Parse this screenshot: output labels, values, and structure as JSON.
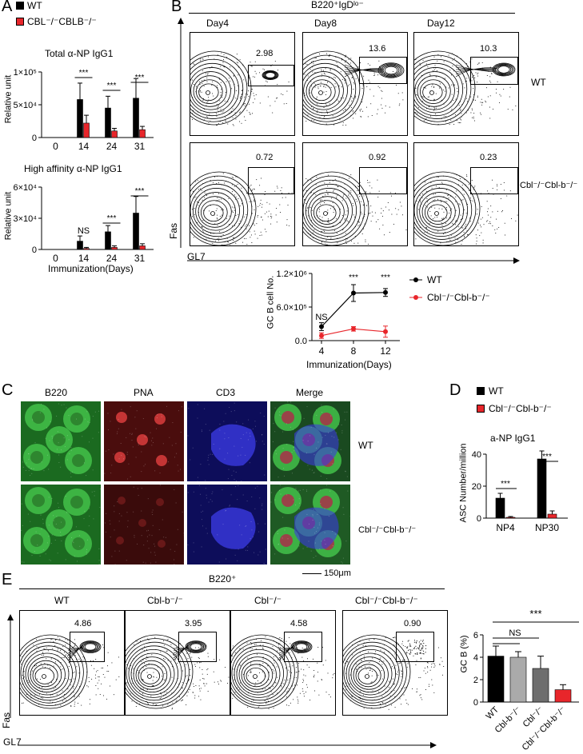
{
  "panels": {
    "A": "A",
    "B": "B",
    "C": "C",
    "D": "D",
    "E": "E"
  },
  "panelA": {
    "legend": [
      {
        "label": "WT",
        "color": "#000000"
      },
      {
        "label": "CBL⁻/⁻CBLB⁻/⁻",
        "color": "#e8262b"
      }
    ],
    "xlabel": "Immunization(Days)"
  },
  "panelB": {
    "header": "B220⁺IgDˡᵒ⁻",
    "days": [
      "Day4",
      "Day8",
      "Day12"
    ],
    "row_labels": [
      "WT",
      "Cbl⁻/⁻Cbl-b⁻/⁻"
    ],
    "yaxis": "Fas",
    "xaxis": "GL7",
    "pcts_wt": [
      "2.98",
      "13.6",
      "10.3"
    ],
    "pcts_ko": [
      "0.72",
      "0.92",
      "0.23"
    ]
  },
  "panelC": {
    "columns": [
      "B220",
      "PNA",
      "CD3",
      "Merge"
    ],
    "rows": [
      "WT",
      "Cbl⁻/⁻Cbl-b⁻/⁻"
    ],
    "scale": "150μm"
  },
  "panelD": {
    "legend": [
      {
        "label": "WT",
        "color": "#000000"
      },
      {
        "label": "Cbl⁻/⁻Cbl-b⁻/⁻",
        "color": "#e8262b"
      }
    ]
  },
  "panelE": {
    "header": "B220⁺",
    "groups": [
      "WT",
      "Cbl-b⁻/⁻",
      "Cbl⁻/⁻",
      "Cbl⁻/⁻Cbl-b⁻/⁻"
    ],
    "pcts": [
      "4.86",
      "3.95",
      "4.58",
      "0.90"
    ],
    "yaxis": "Fas",
    "xaxis": "GL7"
  },
  "colors": {
    "wt": "#000000",
    "ko": "#e8262b",
    "cbl_b": "#aaaaaa",
    "cbl": "#6e6e6e",
    "green": "#2fa33a",
    "red": "#c22a2a",
    "blue": "#2a2ac8"
  },
  "chart_data": [
    {
      "type": "bar",
      "title": "Total α-NP IgG1",
      "ylabel": "Relative unit",
      "xlabel": "",
      "categories": [
        "0",
        "14",
        "24",
        "31"
      ],
      "yticks": [
        "0",
        "5×10⁴",
        "1×10⁵"
      ],
      "ylim": [
        0,
        100000
      ],
      "series": [
        {
          "name": "WT",
          "values": [
            0,
            58000,
            45000,
            60000
          ],
          "errors": [
            0,
            25000,
            18000,
            30000
          ]
        },
        {
          "name": "CBL⁻/⁻CBLB⁻/⁻",
          "values": [
            0,
            22000,
            10000,
            12000
          ],
          "errors": [
            0,
            12000,
            4000,
            5000
          ]
        }
      ],
      "annotations": [
        "***",
        "***",
        "***"
      ]
    },
    {
      "type": "bar",
      "title": "High affinity α-NP IgG1",
      "ylabel": "Relative unit",
      "xlabel": "Immunization(Days)",
      "categories": [
        "0",
        "14",
        "24",
        "31"
      ],
      "yticks": [
        "0",
        "3×10⁴",
        "6×10⁴"
      ],
      "ylim": [
        0,
        60000
      ],
      "series": [
        {
          "name": "WT",
          "values": [
            0,
            8000,
            17000,
            35000
          ],
          "errors": [
            0,
            5000,
            6000,
            16000
          ]
        },
        {
          "name": "CBL⁻/⁻CBLB⁻/⁻",
          "values": [
            0,
            1000,
            2000,
            3500
          ],
          "errors": [
            0,
            1000,
            1500,
            2000
          ]
        }
      ],
      "annotations": [
        "NS",
        "***",
        "***"
      ]
    },
    {
      "type": "line",
      "title": "",
      "ylabel": "GC B cell No.",
      "xlabel": "Immunization(Days)",
      "x": [
        4,
        8,
        12
      ],
      "xticks": [
        "4",
        "8",
        "12"
      ],
      "yticks": [
        "0.0",
        "6.0×10⁵",
        "1.2×10⁶"
      ],
      "ylim": [
        0,
        1200000
      ],
      "series": [
        {
          "name": "WT",
          "values": [
            250000,
            850000,
            860000
          ],
          "errors": [
            70000,
            150000,
            70000
          ]
        },
        {
          "name": "Cbl⁻/⁻Cbl-b⁻/⁻",
          "values": [
            90000,
            210000,
            160000
          ],
          "errors": [
            50000,
            40000,
            100000
          ]
        }
      ],
      "annotations": [
        "NS",
        "***",
        "***"
      ]
    },
    {
      "type": "bar",
      "title": "a-NP IgG1",
      "ylabel": "ASC Number/million",
      "xlabel": "",
      "categories": [
        "NP4",
        "NP30"
      ],
      "yticks": [
        "0",
        "20",
        "40"
      ],
      "ylim": [
        0,
        40
      ],
      "series": [
        {
          "name": "WT",
          "values": [
            12.5,
            37
          ],
          "errors": [
            3,
            5
          ]
        },
        {
          "name": "Cbl⁻/⁻Cbl-b⁻/⁻",
          "values": [
            0.5,
            2.5
          ],
          "errors": [
            0.5,
            2
          ]
        }
      ],
      "annotations": [
        "***",
        "***"
      ]
    },
    {
      "type": "bar",
      "title": "",
      "ylabel": "GC B (%)",
      "xlabel": "",
      "categories": [
        "WT",
        "Cbl-b⁻/⁻",
        "Cbl⁻/⁻",
        "Cbl⁻/⁻Cbl-b⁻/⁻"
      ],
      "yticks": [
        "0",
        "2",
        "4",
        "6"
      ],
      "ylim": [
        0,
        6
      ],
      "values": [
        4.1,
        4.0,
        3.0,
        1.1
      ],
      "errors": [
        0.9,
        0.5,
        1.1,
        0.45
      ],
      "annotations": [
        "***",
        "NS"
      ]
    }
  ]
}
